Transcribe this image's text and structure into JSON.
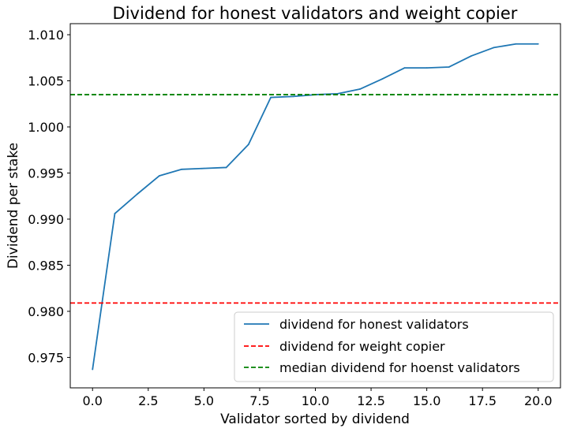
{
  "chart_data": {
    "type": "line",
    "title": "Dividend for honest validators and weight copier",
    "xlabel": "Validator sorted by dividend",
    "ylabel": "Dividend per stake",
    "xlim": [
      -1.0,
      21.0
    ],
    "ylim": [
      0.9717,
      1.0112
    ],
    "x_ticks": [
      0,
      2.5,
      5,
      7.5,
      10,
      12.5,
      15,
      17.5,
      20
    ],
    "x_tick_labels": [
      "0.0",
      "2.5",
      "5.0",
      "7.5",
      "10.0",
      "12.5",
      "15.0",
      "17.5",
      "20.0"
    ],
    "y_ticks": [
      0.975,
      0.98,
      0.985,
      0.99,
      0.995,
      1.0,
      1.005,
      1.01
    ],
    "y_tick_labels": [
      "0.975",
      "0.980",
      "0.985",
      "0.990",
      "0.995",
      "1.000",
      "1.005",
      "1.010"
    ],
    "grid": false,
    "legend_position": "lower-right",
    "series": [
      {
        "name": "dividend for honest validators",
        "style": "solid",
        "color": "#1f77b4",
        "x": [
          0,
          1,
          2,
          3,
          4,
          5,
          6,
          7,
          8,
          9,
          10,
          11,
          12,
          13,
          14,
          15,
          16,
          17,
          18,
          19,
          20
        ],
        "y": [
          0.9737,
          0.9906,
          0.9927,
          0.9947,
          0.9954,
          0.9955,
          0.9956,
          0.9981,
          1.0032,
          1.0033,
          1.0035,
          1.0036,
          1.0041,
          1.0052,
          1.0064,
          1.0064,
          1.0065,
          1.0077,
          1.0086,
          1.009,
          1.009
        ]
      },
      {
        "name": "dividend for weight copier",
        "style": "dashed",
        "color": "#ff0000",
        "y_constant": 0.9809
      },
      {
        "name": "median dividend for hoenst validators",
        "style": "dashed",
        "color": "#008000",
        "y_constant": 1.0035
      }
    ]
  }
}
